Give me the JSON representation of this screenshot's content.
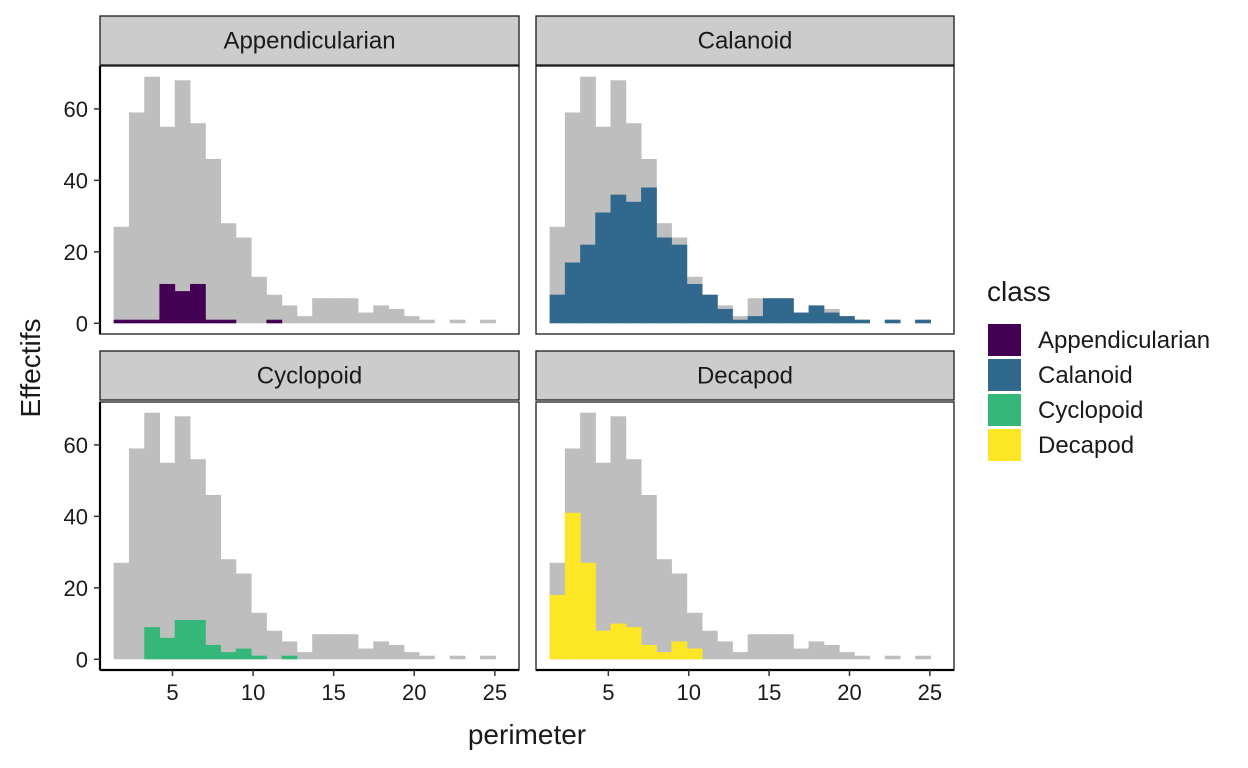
{
  "chart_data": {
    "type": "bar",
    "subtype": "faceted-histogram",
    "xlabel": "perimeter",
    "ylabel": "Effectifs",
    "xlim": [
      0.5,
      26.5
    ],
    "ylim": [
      -3,
      72
    ],
    "x_ticks": [
      5,
      10,
      15,
      20,
      25
    ],
    "y_ticks": [
      0,
      20,
      40,
      60
    ],
    "bin_width": 0.947,
    "bin_centers": [
      1.82,
      2.77,
      3.72,
      4.66,
      5.61,
      6.56,
      7.51,
      8.45,
      9.4,
      10.35,
      11.3,
      12.24,
      13.19,
      14.14,
      15.09,
      16.03,
      16.98,
      17.93,
      18.88,
      19.82,
      20.77,
      21.72,
      22.67,
      23.61,
      24.56
    ],
    "background": {
      "name": "",
      "color": "#bebebe",
      "values": [
        27,
        59,
        69,
        55,
        68,
        56,
        46,
        28,
        24,
        13,
        8,
        5,
        2,
        7,
        7,
        7,
        3,
        5,
        4,
        2,
        1,
        0,
        1,
        0,
        1
      ]
    },
    "legend": {
      "title": "class",
      "position": "right"
    },
    "series": [
      {
        "name": "Appendicularian",
        "color": "#440154",
        "values": [
          1,
          1,
          1,
          11,
          9,
          11,
          1,
          1,
          0,
          0,
          1,
          0,
          0,
          0,
          0,
          0,
          0,
          0,
          0,
          0,
          0,
          0,
          0,
          0,
          0
        ]
      },
      {
        "name": "Calanoid",
        "color": "#31688E",
        "values": [
          8,
          17,
          22,
          31,
          36,
          34,
          38,
          24,
          22,
          11,
          8,
          4,
          1,
          2,
          7,
          7,
          3,
          5,
          3,
          2,
          1,
          0,
          1,
          0,
          1
        ]
      },
      {
        "name": "Cyclopoid",
        "color": "#35B779",
        "values": [
          0,
          0,
          9,
          6,
          11,
          11,
          4,
          2,
          3,
          1,
          0,
          1,
          0,
          0,
          0,
          0,
          0,
          0,
          0,
          0,
          0,
          0,
          0,
          0,
          0
        ]
      },
      {
        "name": "Decapod",
        "color": "#FDE725",
        "values": [
          18,
          41,
          27,
          8,
          10,
          9,
          4,
          2,
          5,
          3,
          0,
          0,
          0,
          0,
          0,
          0,
          0,
          0,
          0,
          0,
          0,
          0,
          0,
          0,
          0
        ]
      }
    ]
  }
}
